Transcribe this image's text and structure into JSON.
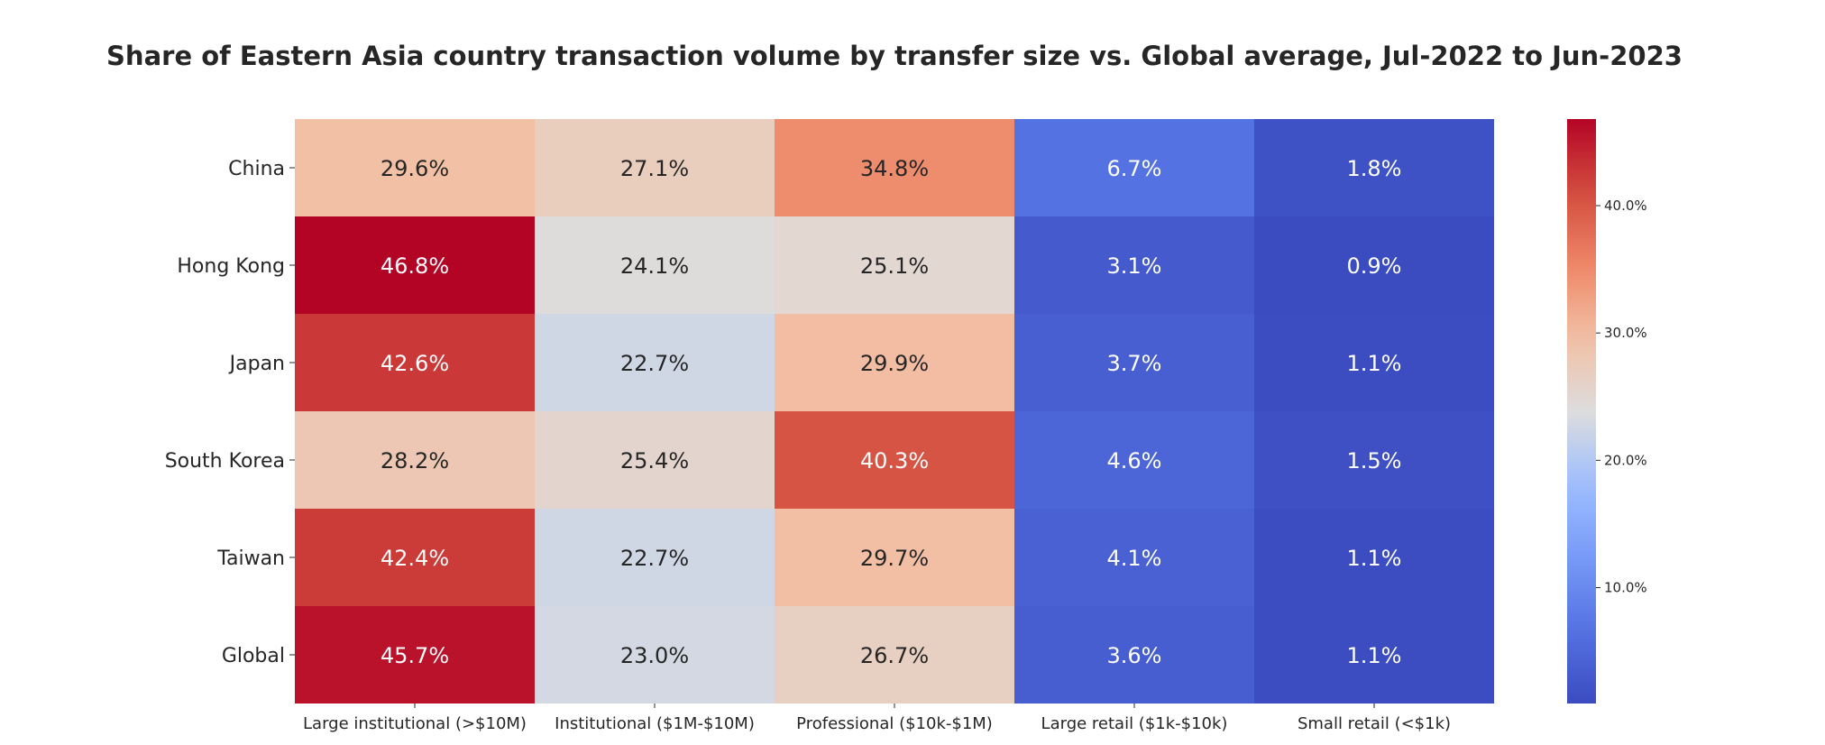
{
  "chart_data": {
    "type": "heatmap",
    "title": "Share of Eastern Asia country transaction volume by transfer size vs. Global average, Jul-2022 to Jun-2023",
    "rows": [
      "China",
      "Hong Kong",
      "Japan",
      "South Korea",
      "Taiwan",
      "Global"
    ],
    "columns": [
      "Large institutional (>$10M)",
      "Institutional ($1M-$10M)",
      "Professional ($10k-$1M)",
      "Large retail ($1k-$10k)",
      "Small retail (<$1k)"
    ],
    "values": [
      [
        29.6,
        27.1,
        34.8,
        6.7,
        1.8
      ],
      [
        46.8,
        24.1,
        25.1,
        3.1,
        0.9
      ],
      [
        42.6,
        22.7,
        29.9,
        3.7,
        1.1
      ],
      [
        28.2,
        25.4,
        40.3,
        4.6,
        1.5
      ],
      [
        42.4,
        22.7,
        29.7,
        4.1,
        1.1
      ],
      [
        45.7,
        23.0,
        26.7,
        3.6,
        1.1
      ]
    ],
    "value_format": "percent_1dp",
    "colormap": "coolwarm",
    "color_range": [
      0.9,
      46.8
    ],
    "colorbar": {
      "ticks": [
        10,
        20,
        30,
        40
      ],
      "tick_labels": [
        "10.0%",
        "20.0%",
        "30.0%",
        "40.0%"
      ],
      "placement": "right"
    },
    "grid": false
  }
}
